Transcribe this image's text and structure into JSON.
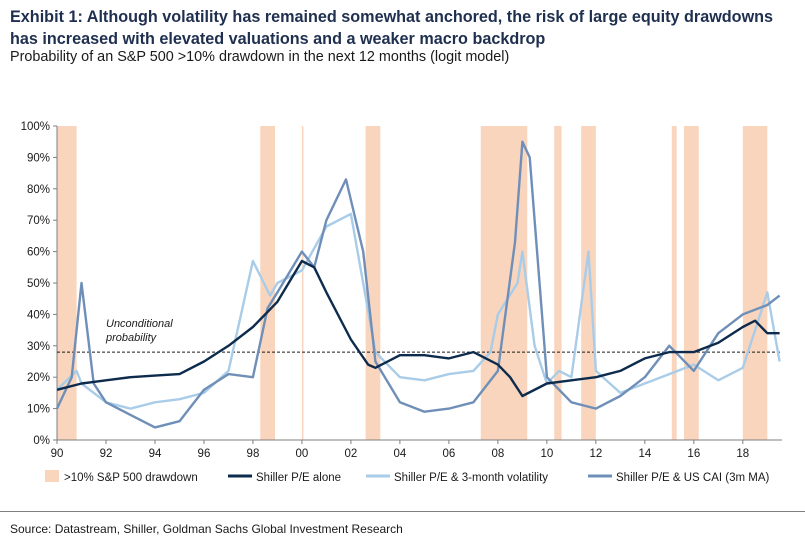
{
  "header": {
    "title": "Exhibit 1: Although volatility has remained somewhat anchored, the risk of large equity drawdowns has increased with elevated valuations and a weaker macro backdrop",
    "subtitle": "Probability of an S&P 500 >10% drawdown in the next 12 months (logit model)"
  },
  "footer": {
    "source": "Source: Datastream, Shiller, Goldman Sachs Global Investment Research"
  },
  "colors": {
    "shading": "#f9d5bd",
    "shiller_pe_alone": "#0d2b4c",
    "shiller_pe_vol": "#a9cce8",
    "shiller_pe_cai": "#6f8fb8",
    "axis": "#7f7f7f"
  },
  "chart_data": {
    "type": "line",
    "title": "Probability of an S&P 500 >10% drawdown in the next 12 months (logit model)",
    "xlim": [
      1990,
      2019.6
    ],
    "ylim": [
      0,
      100
    ],
    "x_ticks": [
      1990,
      1992,
      1994,
      1996,
      1998,
      2000,
      2002,
      2004,
      2006,
      2008,
      2010,
      2012,
      2014,
      2016,
      2018
    ],
    "x_tick_labels": [
      "90",
      "92",
      "94",
      "96",
      "98",
      "00",
      "02",
      "04",
      "06",
      "08",
      "10",
      "12",
      "14",
      "16",
      "18"
    ],
    "y_ticks": [
      0,
      10,
      20,
      30,
      40,
      50,
      60,
      70,
      80,
      90,
      100
    ],
    "y_tick_labels": [
      "0%",
      "10%",
      "20%",
      "30%",
      "40%",
      "50%",
      "60%",
      "70%",
      "80%",
      "90%",
      "100%"
    ],
    "grid": false,
    "legend_position": "bottom",
    "reference_line": {
      "y": 28,
      "label_line1": "Unconditional",
      "label_line2": "probability"
    },
    "drawdown_periods": {
      "name": ">10% S&P 500 drawdown",
      "periods": [
        [
          1990.0,
          1990.8
        ],
        [
          1998.3,
          1998.9
        ],
        [
          2000.0,
          2000.05
        ],
        [
          2002.6,
          2003.2
        ],
        [
          2007.3,
          2009.2
        ],
        [
          2010.3,
          2010.6
        ],
        [
          2011.4,
          2012.0
        ],
        [
          2015.1,
          2015.3
        ],
        [
          2015.6,
          2016.2
        ],
        [
          2018.0,
          2019.0
        ]
      ]
    },
    "series": [
      {
        "name": "Shiller P/E alone",
        "x": [
          1990,
          1991,
          1992,
          1993,
          1994,
          1995,
          1996,
          1997,
          1998,
          1999,
          2000,
          2000.5,
          2001,
          2002,
          2002.7,
          2003,
          2004,
          2005,
          2006,
          2007,
          2008,
          2008.5,
          2009,
          2010,
          2011,
          2012,
          2013,
          2014,
          2015,
          2016,
          2017,
          2018,
          2018.5,
          2019,
          2019.5
        ],
        "values": [
          16,
          18,
          19,
          20,
          20.5,
          21,
          25,
          30,
          36,
          44,
          57,
          55,
          47,
          32,
          24,
          23,
          27,
          27,
          26,
          28,
          24,
          20,
          14,
          18,
          19,
          20,
          22,
          26,
          28,
          28,
          31,
          36,
          38,
          34,
          34
        ]
      },
      {
        "name": "Shiller P/E & 3-month volatility",
        "x": [
          1990,
          1990.8,
          1991,
          1992,
          1993,
          1994,
          1995,
          1996,
          1997,
          1998,
          1998.7,
          1999,
          2000,
          2001,
          2002,
          2003,
          2004,
          2005,
          2006,
          2007,
          2007.7,
          2008,
          2008.8,
          2009,
          2009.5,
          2010,
          2010.5,
          2011,
          2011.7,
          2012,
          2013,
          2014,
          2015,
          2016,
          2017,
          2018,
          2018.5,
          2019,
          2019.5
        ],
        "values": [
          16,
          22,
          18,
          12,
          10,
          12,
          13,
          15,
          22,
          57,
          46,
          50,
          54,
          68,
          72,
          28,
          20,
          19,
          21,
          22,
          28,
          40,
          50,
          60,
          30,
          18,
          22,
          20,
          60,
          22,
          15,
          18,
          21,
          24,
          19,
          23,
          35,
          47,
          25
        ]
      },
      {
        "name": "Shiller P/E & US CAI (3m MA)",
        "x": [
          1990,
          1990.6,
          1991.0,
          1991.5,
          1992,
          1993,
          1994,
          1995,
          1996,
          1997,
          1998,
          1998.6,
          1999,
          2000,
          2000.5,
          2001,
          2001.8,
          2002.5,
          2003,
          2004,
          2005,
          2006,
          2007,
          2008,
          2008.7,
          2009.0,
          2009.3,
          2010,
          2011,
          2012,
          2013,
          2014,
          2015,
          2016,
          2017,
          2018,
          2019,
          2019.5
        ],
        "values": [
          10,
          20,
          50,
          18,
          12,
          8,
          4,
          6,
          16,
          21,
          20,
          42,
          47,
          60,
          55,
          70,
          83,
          60,
          25,
          12,
          9,
          10,
          12,
          22,
          63,
          95,
          90,
          20,
          12,
          10,
          14,
          20,
          30,
          22,
          34,
          40,
          43,
          46
        ]
      }
    ]
  }
}
